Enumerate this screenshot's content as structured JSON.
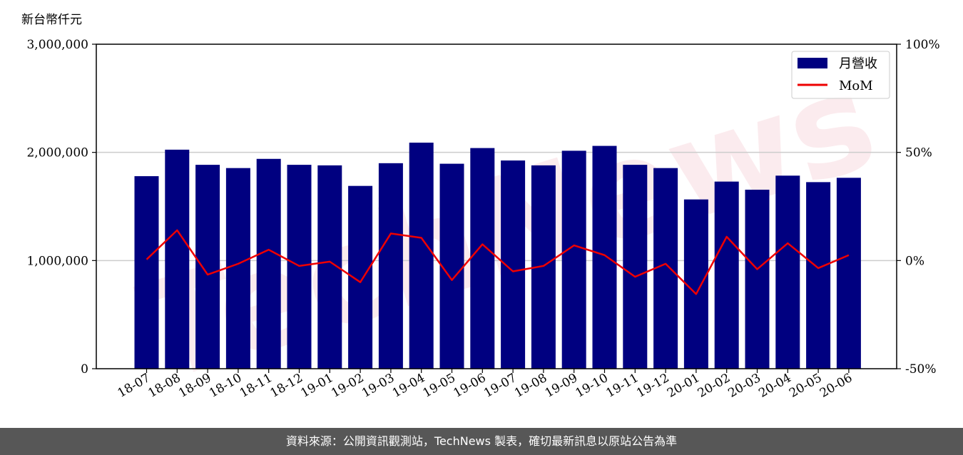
{
  "footer": {
    "source_text": "資料來源：公開資訊觀測站，TechNews 製表，確切最新訊息以原站公告為準"
  },
  "watermark": {
    "text": "TechNews"
  },
  "colors": {
    "bar": "#000080",
    "line": "#ee0000",
    "grid": "#cccccc",
    "footer_bg": "#575757",
    "watermark": "#d9324a"
  },
  "chart_data": {
    "type": "bar",
    "unit_label": "新台幣仟元",
    "categories": [
      "18-07",
      "18-08",
      "18-09",
      "18-10",
      "18-11",
      "18-12",
      "19-01",
      "19-02",
      "19-03",
      "19-04",
      "19-05",
      "19-06",
      "19-07",
      "19-08",
      "19-09",
      "19-10",
      "19-11",
      "19-12",
      "20-01",
      "20-02",
      "20-03",
      "20-04",
      "20-05",
      "20-06"
    ],
    "series": [
      {
        "name": "月營收",
        "type": "bar",
        "axis": "left",
        "values": [
          1780000,
          2025000,
          1885000,
          1855000,
          1940000,
          1885000,
          1880000,
          1690000,
          1900000,
          2090000,
          1895000,
          2040000,
          1925000,
          1880000,
          2015000,
          2060000,
          1885000,
          1855000,
          1565000,
          1730000,
          1655000,
          1785000,
          1725000,
          1765000
        ]
      },
      {
        "name": "MoM",
        "type": "line",
        "axis": "right",
        "unit": "%",
        "values": [
          0.5,
          14.0,
          -6.5,
          -1.5,
          5.0,
          -2.5,
          -0.5,
          -10.0,
          12.5,
          10.5,
          -9.0,
          7.5,
          -5.0,
          -2.5,
          7.0,
          2.5,
          -7.5,
          -1.5,
          -15.5,
          11.0,
          -4.0,
          8.0,
          -3.5,
          2.5
        ]
      }
    ],
    "y_left": {
      "range": [
        0,
        3000000
      ],
      "ticks": [
        0,
        1000000,
        2000000,
        3000000
      ],
      "tick_labels": [
        "0",
        "1,000,000",
        "2,000,000",
        "3,000,000"
      ]
    },
    "y_right": {
      "range": [
        -50,
        100
      ],
      "ticks": [
        -50,
        0,
        50,
        100
      ],
      "tick_labels": [
        "-50%",
        "0%",
        "50%",
        "100%"
      ]
    },
    "grid": "horizontal",
    "legend_position": "top-right",
    "title": "",
    "xlabel": ""
  }
}
